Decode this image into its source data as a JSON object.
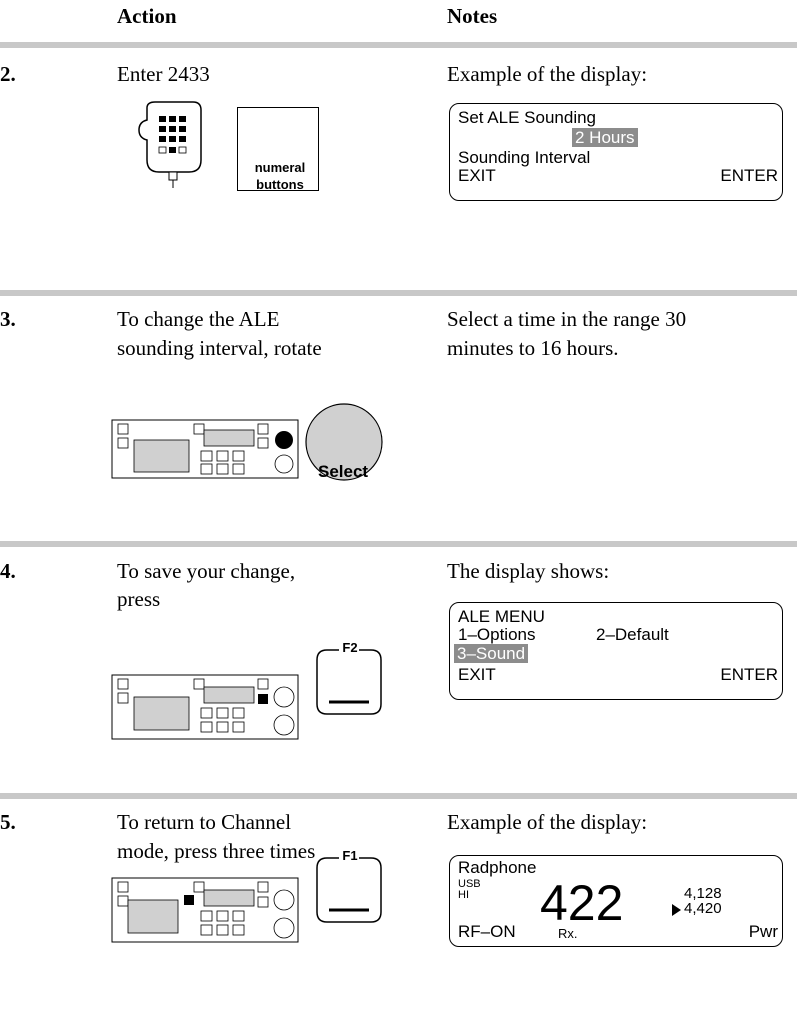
{
  "header": {
    "action": "Action",
    "notes": "Notes"
  },
  "steps": [
    {
      "number": "2.",
      "action": [
        "Enter 2433"
      ],
      "icon_label": [
        "numeral",
        "buttons"
      ],
      "notes": [
        "Example of the display:"
      ],
      "display": [
        "Set ALE Sounding",
        "2 Hours",
        "Sounding Interval",
        "EXIT",
        "ENTER"
      ]
    },
    {
      "number": "3.",
      "action": [
        "To change the ALE",
        "sounding interval, rotate"
      ],
      "icon_label": [
        "Select"
      ],
      "notes": [
        "Select a time in the range 30",
        "minutes to 16 hours."
      ]
    },
    {
      "number": "4.",
      "action": [
        "To save your change,",
        "press"
      ],
      "icon_label": [
        "F2"
      ],
      "notes": [
        "The display shows:"
      ],
      "display": [
        "ALE MENU",
        "1–Options",
        "2–Default",
        "3–Sound",
        "EXIT",
        "ENTER"
      ]
    },
    {
      "number": "5.",
      "action": [
        "To return to Channel",
        "mode, press three times"
      ],
      "icon_label": [
        "F1"
      ],
      "notes": [
        "Example of the display:"
      ],
      "display": [
        "Radphone",
        "USB",
        "HI",
        "422",
        "4,128",
        "4,420",
        "RF–ON",
        "Rx.",
        "Pwr"
      ]
    }
  ]
}
